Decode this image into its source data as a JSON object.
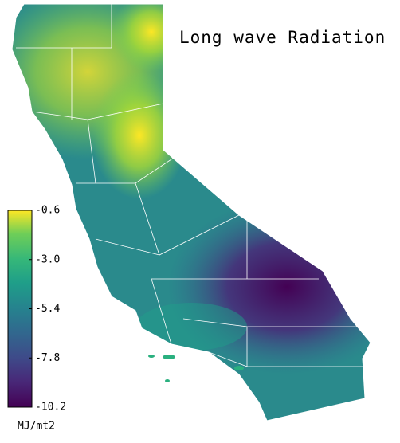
{
  "title": "Long wave Radiation",
  "colorbar": {
    "label": "MJ/mt2",
    "lim": [
      -10.2,
      -0.6
    ],
    "ticks": [
      -0.6,
      {
        "value": -3,
        "label": "-3.0"
      },
      -5.4,
      -7.8,
      -10.2
    ]
  }
}
